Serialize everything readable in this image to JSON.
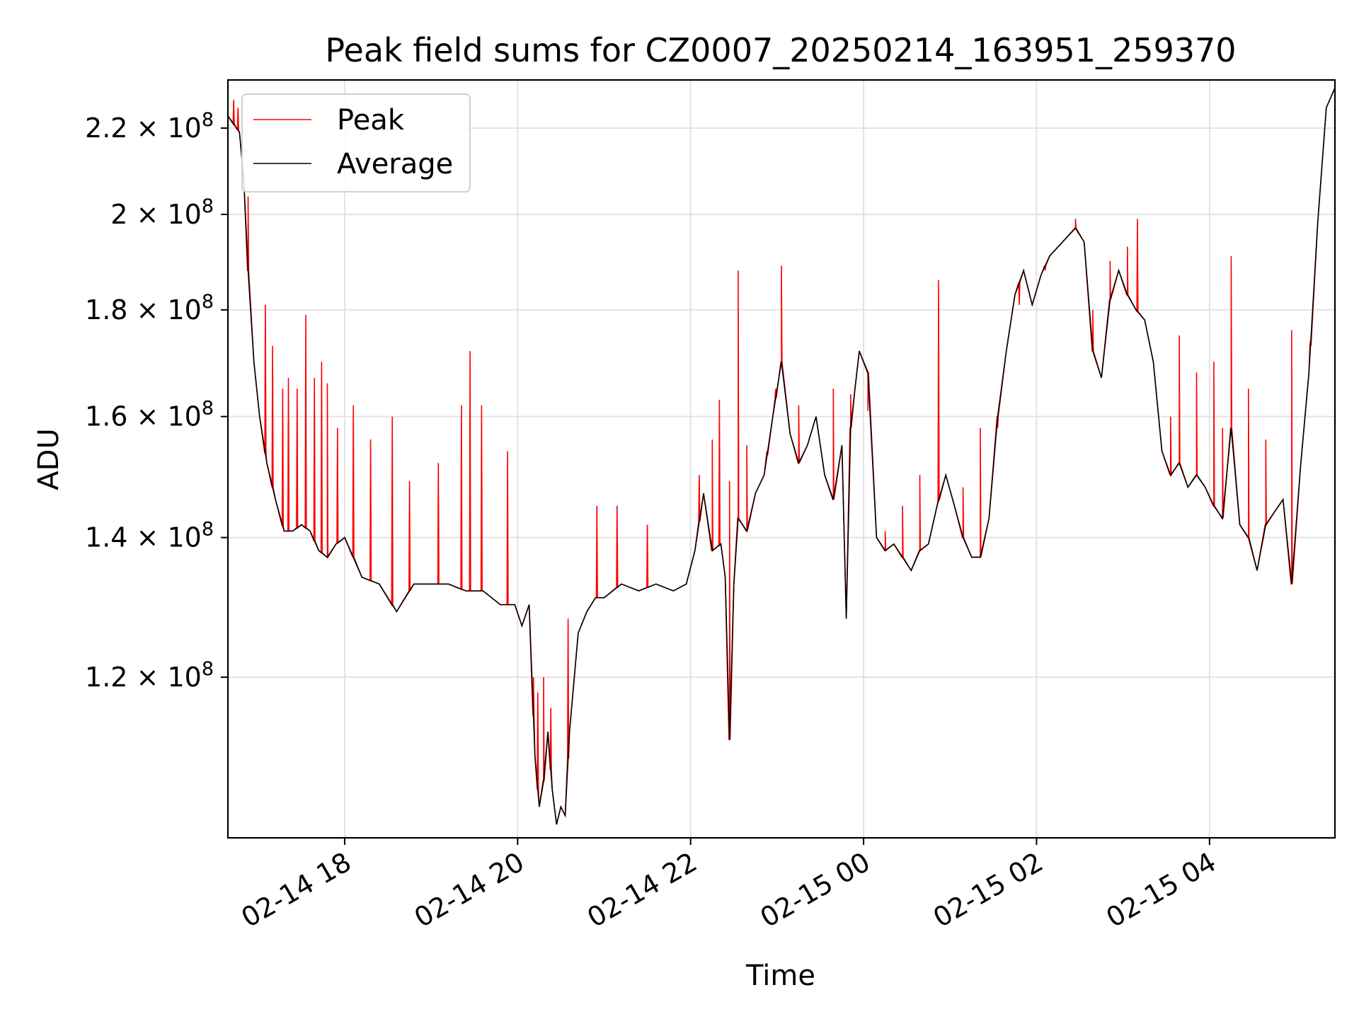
{
  "chart_data": {
    "type": "line",
    "title": "Peak field sums for CZ0007_20250214_163951_259370",
    "xlabel": "Time",
    "ylabel": "ADU",
    "y_scale": "log",
    "ylim": [
      100500000,
      232000000
    ],
    "xlim": [
      "02-14 16:39",
      "02-15 05:27"
    ],
    "grid": true,
    "legend_position": "upper-left",
    "x_ticks": [
      {
        "label": "02-14 18",
        "value": "02-14 18:00"
      },
      {
        "label": "02-14 20",
        "value": "02-14 20:00"
      },
      {
        "label": "02-14 22",
        "value": "02-14 22:00"
      },
      {
        "label": "02-15 00",
        "value": "02-15 00:00"
      },
      {
        "label": "02-15 02",
        "value": "02-15 02:00"
      },
      {
        "label": "02-15 04",
        "value": "02-15 04:00"
      }
    ],
    "y_ticks": [
      {
        "mantissa": "1.2",
        "value": 120000000
      },
      {
        "mantissa": "1.4",
        "value": 140000000
      },
      {
        "mantissa": "1.6",
        "value": 160000000
      },
      {
        "mantissa": "1.8",
        "value": 180000000
      },
      {
        "mantissa": "2",
        "value": 200000000
      },
      {
        "mantissa": "2.2",
        "value": 220000000
      }
    ],
    "y_tick_base": "10",
    "y_tick_exponent": "8",
    "series": [
      {
        "name": "Average",
        "color": "#000000",
        "x": [
          "02-14 16:39",
          "02-14 16:47",
          "02-14 16:50",
          "02-14 16:53",
          "02-14 16:57",
          "02-14 17:01",
          "02-14 17:06",
          "02-14 17:12",
          "02-14 17:18",
          "02-14 17:24",
          "02-14 17:30",
          "02-14 17:36",
          "02-14 17:42",
          "02-14 17:48",
          "02-14 17:54",
          "02-14 18:00",
          "02-14 18:12",
          "02-14 18:24",
          "02-14 18:36",
          "02-14 18:48",
          "02-14 19:00",
          "02-14 19:12",
          "02-14 19:24",
          "02-14 19:36",
          "02-14 19:48",
          "02-14 19:58",
          "02-14 20:03",
          "02-14 20:08",
          "02-14 20:12",
          "02-14 20:15",
          "02-14 20:18",
          "02-14 20:21",
          "02-14 20:24",
          "02-14 20:27",
          "02-14 20:30",
          "02-14 20:33",
          "02-14 20:36",
          "02-14 20:42",
          "02-14 20:48",
          "02-14 20:54",
          "02-14 21:00",
          "02-14 21:12",
          "02-14 21:24",
          "02-14 21:36",
          "02-14 21:48",
          "02-14 21:57",
          "02-14 22:03",
          "02-14 22:09",
          "02-14 22:15",
          "02-14 22:21",
          "02-14 22:24",
          "02-14 22:27",
          "02-14 22:30",
          "02-14 22:33",
          "02-14 22:39",
          "02-14 22:45",
          "02-14 22:51",
          "02-14 22:57",
          "02-14 23:03",
          "02-14 23:09",
          "02-14 23:15",
          "02-14 23:21",
          "02-14 23:27",
          "02-14 23:33",
          "02-14 23:39",
          "02-14 23:45",
          "02-14 23:48",
          "02-14 23:51",
          "02-14 23:54",
          "02-14 23:57",
          "02-15 00:03",
          "02-15 00:09",
          "02-15 00:15",
          "02-15 00:21",
          "02-15 00:27",
          "02-15 00:33",
          "02-15 00:39",
          "02-15 00:45",
          "02-15 00:51",
          "02-15 00:57",
          "02-15 01:03",
          "02-15 01:09",
          "02-15 01:15",
          "02-15 01:21",
          "02-15 01:27",
          "02-15 01:33",
          "02-15 01:39",
          "02-15 01:45",
          "02-15 01:51",
          "02-15 01:57",
          "02-15 02:03",
          "02-15 02:09",
          "02-15 02:15",
          "02-15 02:21",
          "02-15 02:27",
          "02-15 02:33",
          "02-15 02:39",
          "02-15 02:45",
          "02-15 02:51",
          "02-15 02:57",
          "02-15 03:03",
          "02-15 03:09",
          "02-15 03:15",
          "02-15 03:21",
          "02-15 03:27",
          "02-15 03:33",
          "02-15 03:39",
          "02-15 03:45",
          "02-15 03:51",
          "02-15 03:57",
          "02-15 04:03",
          "02-15 04:09",
          "02-15 04:15",
          "02-15 04:21",
          "02-15 04:27",
          "02-15 04:33",
          "02-15 04:39",
          "02-15 04:45",
          "02-15 04:51",
          "02-15 04:57",
          "02-15 05:03",
          "02-15 05:09",
          "02-15 05:15",
          "02-15 05:21",
          "02-15 05:27"
        ],
        "values": [
          223000000,
          219000000,
          208000000,
          188000000,
          170000000,
          160000000,
          152000000,
          146000000,
          141000000,
          141000000,
          142000000,
          141000000,
          138000000,
          137000000,
          139000000,
          140000000,
          134000000,
          133000000,
          129000000,
          133000000,
          133000000,
          133000000,
          132000000,
          132000000,
          130000000,
          130000000,
          127000000,
          130000000,
          110000000,
          104000000,
          107000000,
          113000000,
          106000000,
          102000000,
          104000000,
          103000000,
          113000000,
          126000000,
          129000000,
          131000000,
          131000000,
          133000000,
          132000000,
          133000000,
          132000000,
          133000000,
          138000000,
          147000000,
          138000000,
          139000000,
          134000000,
          112000000,
          133000000,
          143000000,
          141000000,
          147000000,
          150000000,
          160000000,
          170000000,
          157000000,
          152000000,
          155000000,
          160000000,
          150000000,
          146000000,
          155000000,
          128000000,
          158000000,
          165000000,
          172000000,
          168000000,
          140000000,
          138000000,
          139000000,
          137000000,
          135000000,
          138000000,
          139000000,
          145000000,
          150000000,
          145000000,
          140000000,
          137000000,
          137000000,
          143000000,
          160000000,
          172000000,
          183000000,
          188000000,
          181000000,
          187000000,
          191000000,
          193000000,
          195000000,
          197000000,
          194000000,
          172000000,
          167000000,
          182000000,
          188000000,
          183000000,
          180000000,
          178000000,
          170000000,
          154000000,
          150000000,
          152000000,
          148000000,
          150000000,
          148000000,
          145000000,
          143000000,
          158000000,
          142000000,
          140000000,
          135000000,
          142000000,
          144000000,
          146000000,
          133000000,
          151000000,
          168000000,
          198000000,
          225000000,
          230000000
        ]
      },
      {
        "name": "Peak",
        "color": "#ff0000",
        "spikes": [
          {
            "x": "02-14 16:43",
            "value": 227000000
          },
          {
            "x": "02-14 16:46",
            "value": 225000000
          },
          {
            "x": "02-14 16:53",
            "value": 204000000
          },
          {
            "x": "02-14 17:05",
            "value": 181000000
          },
          {
            "x": "02-14 17:10",
            "value": 173000000
          },
          {
            "x": "02-14 17:17",
            "value": 165000000
          },
          {
            "x": "02-14 17:21",
            "value": 167000000
          },
          {
            "x": "02-14 17:27",
            "value": 165000000
          },
          {
            "x": "02-14 17:33",
            "value": 179000000
          },
          {
            "x": "02-14 17:39",
            "value": 167000000
          },
          {
            "x": "02-14 17:44",
            "value": 170000000
          },
          {
            "x": "02-14 17:48",
            "value": 166000000
          },
          {
            "x": "02-14 17:55",
            "value": 158000000
          },
          {
            "x": "02-14 18:06",
            "value": 162000000
          },
          {
            "x": "02-14 18:18",
            "value": 156000000
          },
          {
            "x": "02-14 18:33",
            "value": 160000000
          },
          {
            "x": "02-14 18:45",
            "value": 149000000
          },
          {
            "x": "02-14 19:05",
            "value": 152000000
          },
          {
            "x": "02-14 19:21",
            "value": 162000000
          },
          {
            "x": "02-14 19:27",
            "value": 172000000
          },
          {
            "x": "02-14 19:35",
            "value": 162000000
          },
          {
            "x": "02-14 19:53",
            "value": 154000000
          },
          {
            "x": "02-14 20:11",
            "value": 120000000
          },
          {
            "x": "02-14 20:14",
            "value": 118000000
          },
          {
            "x": "02-14 20:18",
            "value": 120000000
          },
          {
            "x": "02-14 20:23",
            "value": 116000000
          },
          {
            "x": "02-14 20:35",
            "value": 128000000
          },
          {
            "x": "02-14 20:55",
            "value": 145000000
          },
          {
            "x": "02-14 21:09",
            "value": 145000000
          },
          {
            "x": "02-14 21:30",
            "value": 142000000
          },
          {
            "x": "02-14 22:06",
            "value": 150000000
          },
          {
            "x": "02-14 22:15",
            "value": 156000000
          },
          {
            "x": "02-14 22:20",
            "value": 163000000
          },
          {
            "x": "02-14 22:27",
            "value": 149000000
          },
          {
            "x": "02-14 22:33",
            "value": 188000000
          },
          {
            "x": "02-14 22:39",
            "value": 155000000
          },
          {
            "x": "02-14 22:53",
            "value": 154000000
          },
          {
            "x": "02-14 22:59",
            "value": 165000000
          },
          {
            "x": "02-14 23:03",
            "value": 189000000
          },
          {
            "x": "02-14 23:15",
            "value": 162000000
          },
          {
            "x": "02-14 23:39",
            "value": 165000000
          },
          {
            "x": "02-14 23:51",
            "value": 164000000
          },
          {
            "x": "02-15 00:03",
            "value": 161000000
          },
          {
            "x": "02-15 00:15",
            "value": 141000000
          },
          {
            "x": "02-15 00:27",
            "value": 145000000
          },
          {
            "x": "02-15 00:39",
            "value": 150000000
          },
          {
            "x": "02-15 00:52",
            "value": 186000000
          },
          {
            "x": "02-15 01:09",
            "value": 148000000
          },
          {
            "x": "02-15 01:21",
            "value": 158000000
          },
          {
            "x": "02-15 01:33",
            "value": 158000000
          },
          {
            "x": "02-15 01:48",
            "value": 181000000
          },
          {
            "x": "02-15 02:06",
            "value": 188000000
          },
          {
            "x": "02-15 02:27",
            "value": 199000000
          },
          {
            "x": "02-15 02:39",
            "value": 180000000
          },
          {
            "x": "02-15 02:51",
            "value": 190000000
          },
          {
            "x": "02-15 03:03",
            "value": 193000000
          },
          {
            "x": "02-15 03:10",
            "value": 199000000
          },
          {
            "x": "02-15 03:33",
            "value": 160000000
          },
          {
            "x": "02-15 03:39",
            "value": 175000000
          },
          {
            "x": "02-15 03:51",
            "value": 168000000
          },
          {
            "x": "02-15 04:03",
            "value": 170000000
          },
          {
            "x": "02-15 04:09",
            "value": 158000000
          },
          {
            "x": "02-15 04:15",
            "value": 191000000
          },
          {
            "x": "02-15 04:27",
            "value": 165000000
          },
          {
            "x": "02-15 04:39",
            "value": 156000000
          },
          {
            "x": "02-15 04:57",
            "value": 176000000
          },
          {
            "x": "02-15 05:10",
            "value": 174000000
          }
        ]
      }
    ]
  }
}
